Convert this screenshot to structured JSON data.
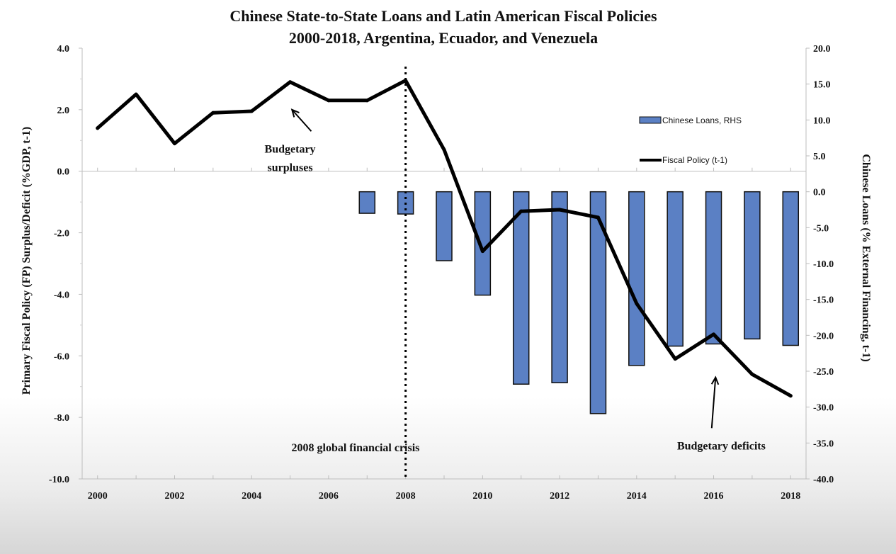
{
  "chart_data": {
    "type": "bar",
    "title": "Chinese State-to-State Loans and Latin American Fiscal Policies",
    "subtitle": "2000-2018, Argentina, Ecuador, and Venezuela",
    "ylabel": "Primary Fiscal Policy (FP) Surplus/Deficit (%GDP, t-1)",
    "y2label": "Chinese Loans (% External Financing, t-1)",
    "x_tick_labels": [
      "2000",
      "2002",
      "2004",
      "2006",
      "2008",
      "2010",
      "2012",
      "2014",
      "2016",
      "2018"
    ],
    "y_tick_labels": [
      "4.0",
      "2.0",
      "0.0",
      "-2.0",
      "-4.0",
      "-6.0",
      "-8.0",
      "-10.0"
    ],
    "y2_tick_labels": [
      "20.0",
      "15.0",
      "10.0",
      "5.0",
      "0.0",
      "-5.0",
      "-10.0",
      "-15.0",
      "-20.0",
      "-25.0",
      "-30.0",
      "-35.0",
      "-40.0"
    ],
    "ylim": [
      -10,
      4
    ],
    "y2lim": [
      -40,
      20
    ],
    "legend": {
      "position": "right",
      "entries": [
        "Chinese Loans, RHS",
        "Fiscal Policy (t-1)"
      ]
    },
    "series": [
      {
        "name": "Chinese Loans, RHS",
        "axis": "right",
        "type": "bar",
        "color": "#5b80c4",
        "x": [
          2007,
          2008,
          2009,
          2010,
          2011,
          2012,
          2013,
          2014,
          2015,
          2016,
          2017,
          2018
        ],
        "values": [
          -3.0,
          -3.1,
          -9.6,
          -14.4,
          -26.8,
          -26.6,
          -30.9,
          -24.2,
          -21.5,
          -21.2,
          -20.5,
          -21.4
        ]
      },
      {
        "name": "Fiscal Policy (t-1)",
        "axis": "left",
        "type": "line",
        "color": "#000000",
        "x": [
          2000,
          2001,
          2002,
          2003,
          2004,
          2005,
          2006,
          2007,
          2008,
          2009,
          2010,
          2011,
          2012,
          2013,
          2014,
          2015,
          2016,
          2017,
          2018
        ],
        "values": [
          1.4,
          2.5,
          0.9,
          1.9,
          1.95,
          2.9,
          2.3,
          2.3,
          2.95,
          0.7,
          -2.6,
          -1.3,
          -1.25,
          -1.5,
          -4.3,
          -6.1,
          -5.3,
          -6.6,
          -7.3
        ]
      }
    ],
    "annotations": [
      {
        "text": "Budgetary",
        "x": 2005,
        "y": 0.6
      },
      {
        "text": "surpluses",
        "x": 2005,
        "y": 0.0
      },
      {
        "text": "2008 global financial crisis",
        "x": 2006.7,
        "y": -9.1
      },
      {
        "text": "Budgetary deficits",
        "x": 2016.2,
        "y": -9.05
      }
    ],
    "reference_lines": [
      {
        "type": "vertical",
        "x": 2008,
        "style": "dotted",
        "label": "2008 global financial crisis"
      }
    ]
  }
}
